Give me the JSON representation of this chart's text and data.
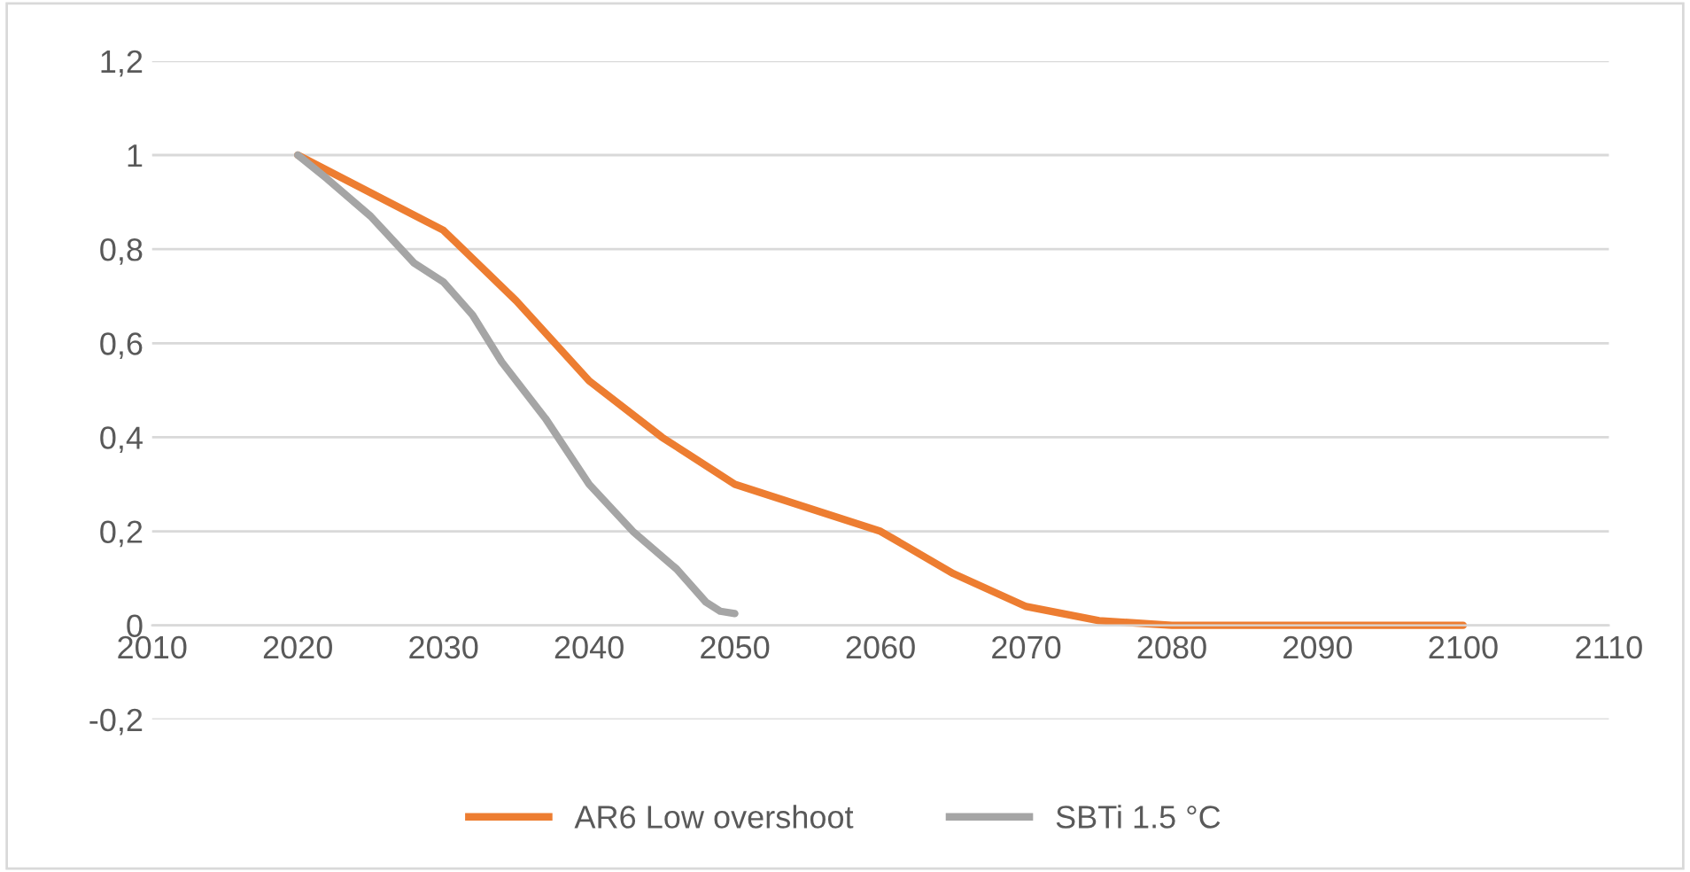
{
  "chart_data": {
    "type": "line",
    "x": [
      2020,
      2025,
      2030,
      2035,
      2040,
      2045,
      2050,
      2055,
      2060,
      2065,
      2070,
      2075,
      2080,
      2085,
      2090,
      2095,
      2100
    ],
    "series": [
      {
        "name": "AR6 Low overshoot",
        "color": "#ed7d31",
        "values": [
          1,
          0.92,
          0.84,
          0.69,
          0.52,
          0.4,
          0.3,
          0.25,
          0.2,
          0.11,
          0.04,
          0.01,
          0,
          0,
          0,
          0,
          0
        ]
      },
      {
        "name": "SBTi 1.5 °C",
        "color": "#a5a5a5",
        "x": [
          2020,
          2022,
          2025,
          2028,
          2030,
          2032,
          2034,
          2037,
          2040,
          2043,
          2046,
          2048,
          2049,
          2050
        ],
        "values": [
          1,
          0.95,
          0.87,
          0.77,
          0.73,
          0.66,
          0.56,
          0.44,
          0.3,
          0.2,
          0.12,
          0.05,
          0.03,
          0.025
        ]
      }
    ],
    "xlim": [
      2010,
      2110
    ],
    "xticks": [
      2010,
      2020,
      2030,
      2040,
      2050,
      2060,
      2070,
      2080,
      2090,
      2100,
      2110
    ],
    "ylim": [
      -0.2,
      1.2
    ],
    "yticks": [
      {
        "value": -0.2,
        "label": "-0,2"
      },
      0,
      {
        "value": 0.2,
        "label": "0,2"
      },
      {
        "value": 0.4,
        "label": "0,4"
      },
      {
        "value": 0.6,
        "label": "0,6"
      },
      {
        "value": 0.8,
        "label": "0,8"
      },
      1,
      {
        "value": 1.2,
        "label": "1,2"
      }
    ],
    "grid": "y",
    "legend": "bottom",
    "marker": "none",
    "line_style": "solid"
  }
}
